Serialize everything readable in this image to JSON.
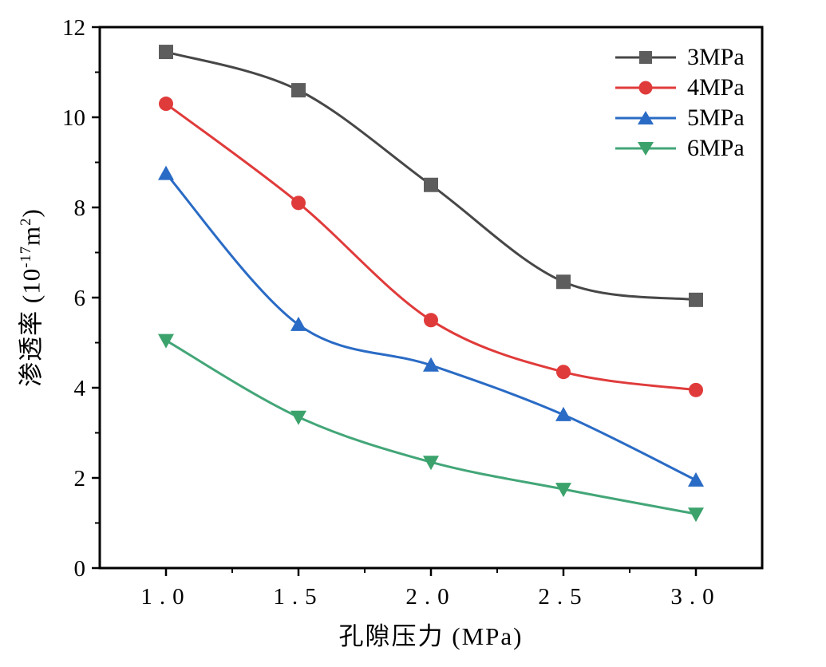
{
  "figure": {
    "background": "#ffffff",
    "frame_color": "#000000",
    "tick_color": "#000000"
  },
  "chart_data": {
    "type": "line",
    "title": "",
    "xlabel": "孔隙压力 (MPa)",
    "ylabel": "渗透率 (10⁻¹⁷m²)",
    "ylabel_parts": [
      "渗透率 (10",
      "-17",
      "m",
      "2",
      ")"
    ],
    "xlim": [
      0.75,
      3.25
    ],
    "ylim": [
      0,
      12
    ],
    "xticks": [
      1.0,
      1.5,
      2.0,
      2.5,
      3.0
    ],
    "xtick_labels": [
      "1.0",
      "1.5",
      "2.0",
      "2.5",
      "3.0"
    ],
    "xticks_minor": [
      1.25,
      1.75,
      2.25,
      2.75
    ],
    "yticks": [
      0,
      2,
      4,
      6,
      8,
      10,
      12
    ],
    "ytick_labels": [
      "0",
      "2",
      "4",
      "6",
      "8",
      "10",
      "12"
    ],
    "yticks_minor": [
      1,
      3,
      5,
      7,
      9,
      11
    ],
    "grid": false,
    "legend_position": "top-right",
    "x": [
      1.0,
      1.5,
      2.0,
      2.5,
      3.0
    ],
    "series": [
      {
        "name": "3MPa",
        "marker": "square",
        "line_color": "#474747",
        "marker_color": "#5d5d5d",
        "values": [
          11.45,
          10.6,
          8.5,
          6.35,
          5.95
        ]
      },
      {
        "name": "4MPa",
        "marker": "circle",
        "line_color": "#e03b3b",
        "marker_color": "#e03b3b",
        "values": [
          10.3,
          8.1,
          5.5,
          4.35,
          3.95
        ]
      },
      {
        "name": "5MPa",
        "marker": "triangle-up",
        "line_color": "#2a6bc5",
        "marker_color": "#2a6bc5",
        "values": [
          8.75,
          5.4,
          4.5,
          3.4,
          1.95
        ]
      },
      {
        "name": "6MPa",
        "marker": "triangle-down",
        "line_color": "#43a678",
        "marker_color": "#3ba26b",
        "values": [
          5.05,
          3.35,
          2.35,
          1.75,
          1.2
        ]
      }
    ]
  }
}
